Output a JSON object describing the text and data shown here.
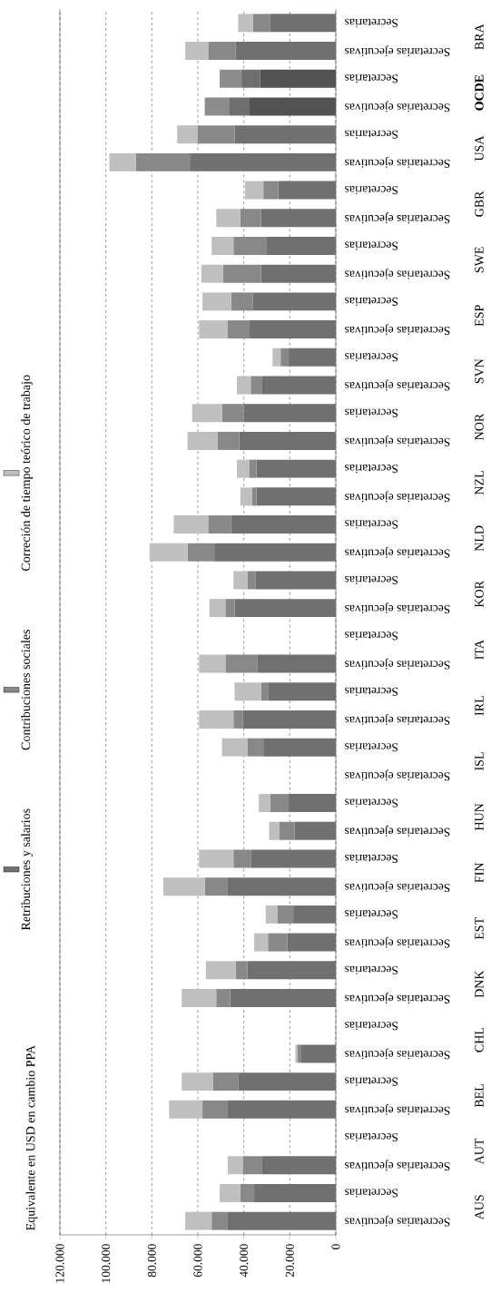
{
  "chart_data": {
    "type": "bar",
    "stacked": true,
    "orientation": "horizontal",
    "ylabel": "Equivalente en USD en cambio PPA",
    "categories": [
      "Secretarias",
      "Secretarias ejecutivas",
      "Secretarias",
      "Secretarias ejecutivas",
      "Secretarias",
      "Secretarias ejecutivas",
      "Secretarias",
      "Secretarias ejecutivas",
      "Secretarias",
      "Secretarias ejecutivas",
      "Secretarias",
      "Secretarias ejecutivas",
      "Secretarias",
      "Secretarias ejecutivas",
      "Secretarias",
      "Secretarias ejecutivas",
      "Secretarias",
      "Secretarias ejecutivas",
      "Secretarias",
      "Secretarias ejecutivas",
      "Secretarias",
      "Secretarias ejecutivas",
      "Secretarias",
      "Secretarias ejecutivas",
      "Secretarias",
      "Secretarias ejecutivas",
      "Secretarias",
      "Secretarias ejecutivas",
      "Secretarias",
      "Secretarias ejecutivas",
      "Secretarias",
      "Secretarias ejecutivas",
      "Secretarias",
      "Secretarias ejecutivas",
      "Secretarias",
      "Secretarias ejecutivas",
      "Secretarias",
      "Secretarias ejecutivas",
      "Secretarias",
      "Secretarias ejecutivas",
      "Secretarias",
      "Secretarias ejecutivas",
      "Secretarias",
      "Secretarias ejecutivas"
    ],
    "annotations": [
      "BRA",
      "**OCDE**",
      "USA",
      "GBR",
      "SWE",
      "ESP",
      "SVN",
      "NOR",
      "NZL",
      "NLD",
      "KOR",
      "ITA",
      "IRL",
      "ISL",
      "HUN",
      "FIN",
      "EST",
      "DNK",
      "CHL",
      "BEL",
      "AUT",
      "AUS"
    ],
    "series": [
      {
        "name": "Retribuciones y salarios",
        "color": "#707070",
        "colors": [
          "#707070",
          "#707070",
          "#525252",
          "#525252",
          "#707070",
          "#707070",
          "#707070",
          "#707070",
          "#707070",
          "#707070",
          "#707070",
          "#707070",
          "#707070",
          "#707070",
          "#707070",
          "#707070",
          "#707070",
          "#707070",
          "#707070",
          "#707070",
          "#707070",
          "#707070",
          "#707070",
          "#707070",
          "#707070",
          "#707070",
          "#707070",
          "#707070",
          "#707070",
          "#707070",
          "#707070",
          "#707070",
          "#707070",
          "#707070",
          "#707070",
          "#707070",
          "#707070",
          "#707070",
          "#707070",
          "#707070",
          "#707070",
          "#707070",
          "#707070",
          "#707070"
        ],
        "values": [
          28500,
          43500,
          33000,
          37500,
          44000,
          63500,
          25000,
          32500,
          30000,
          32500,
          36000,
          37500,
          20500,
          32000,
          40000,
          42000,
          34500,
          34500,
          45500,
          52500,
          35000,
          44000,
          null,
          34000,
          29500,
          40500,
          31500,
          null,
          20500,
          18000,
          37000,
          47000,
          18500,
          21000,
          38500,
          46000,
          null,
          15000,
          42500,
          47000,
          null,
          32000,
          35500,
          47000
        ]
      },
      {
        "name": "Contribuciones sociales",
        "color": "#888888",
        "colors": [
          "#888888",
          "#888888",
          "#6e6e6e",
          "#6e6e6e",
          "#888888",
          "#888888",
          "#888888",
          "#888888",
          "#888888",
          "#888888",
          "#888888",
          "#888888",
          "#888888",
          "#888888",
          "#888888",
          "#888888",
          "#888888",
          "#888888",
          "#888888",
          "#888888",
          "#888888",
          "#888888",
          "#888888",
          "#888888",
          "#888888",
          "#888888",
          "#888888",
          "#888888",
          "#888888",
          "#888888",
          "#888888",
          "#888888",
          "#888888",
          "#888888",
          "#888888",
          "#888888",
          "#888888",
          "#888888",
          "#888888",
          "#888888",
          "#888888",
          "#888888",
          "#888888",
          "#888888"
        ],
        "values": [
          7500,
          12000,
          8000,
          9000,
          16000,
          23500,
          6500,
          9000,
          14500,
          16500,
          9500,
          9500,
          3500,
          5000,
          9500,
          9500,
          3000,
          2000,
          10000,
          12000,
          3500,
          4000,
          null,
          14000,
          3000,
          4000,
          7000,
          null,
          8000,
          6500,
          7500,
          10000,
          7000,
          8500,
          5000,
          6000,
          null,
          1800,
          11000,
          11000,
          null,
          8500,
          6000,
          7000
        ]
      },
      {
        "name": "Correción de tiempo teórico de trabajo",
        "color": "#bfbfbf",
        "colors": [
          "#bfbfbf",
          "#bfbfbf",
          "#8c8c8c",
          "#8c8c8c",
          "#bfbfbf",
          "#bfbfbf",
          "#bfbfbf",
          "#bfbfbf",
          "#bfbfbf",
          "#bfbfbf",
          "#bfbfbf",
          "#bfbfbf",
          "#bfbfbf",
          "#bfbfbf",
          "#bfbfbf",
          "#bfbfbf",
          "#bfbfbf",
          "#bfbfbf",
          "#bfbfbf",
          "#bfbfbf",
          "#bfbfbf",
          "#bfbfbf",
          "#bfbfbf",
          "#bfbfbf",
          "#bfbfbf",
          "#bfbfbf",
          "#bfbfbf",
          "#bfbfbf",
          "#bfbfbf",
          "#bfbfbf",
          "#bfbfbf",
          "#bfbfbf",
          "#bfbfbf",
          "#bfbfbf",
          "#bfbfbf",
          "#bfbfbf",
          "#bfbfbf",
          "#bfbfbf",
          "#bfbfbf",
          "#bfbfbf",
          "#bfbfbf",
          "#bfbfbf",
          "#bfbfbf",
          "#bfbfbf"
        ],
        "values": [
          6500,
          10000,
          9500,
          10500,
          9000,
          11500,
          8000,
          10500,
          9500,
          9500,
          12500,
          12500,
          3500,
          6000,
          13000,
          13000,
          5500,
          5000,
          15000,
          16500,
          6000,
          7000,
          null,
          11500,
          11500,
          15000,
          11000,
          null,
          5000,
          4500,
          15000,
          18000,
          5000,
          6000,
          13000,
          15000,
          null,
          800,
          13500,
          14500,
          null,
          6500,
          9000,
          11500
        ]
      }
    ],
    "xlim": [
      120000,
      0
    ],
    "xticks": [
      {
        "value": 0,
        "label": "0"
      },
      {
        "value": 20000,
        "label": "20.000"
      },
      {
        "value": 40000,
        "label": "40.000"
      },
      {
        "value": 60000,
        "label": "60.000"
      },
      {
        "value": 80000,
        "label": "80.000"
      },
      {
        "value": 100000,
        "label": "100.000"
      },
      {
        "value": 120000,
        "label": "120.000"
      }
    ],
    "grid": "x",
    "legend": "left"
  }
}
